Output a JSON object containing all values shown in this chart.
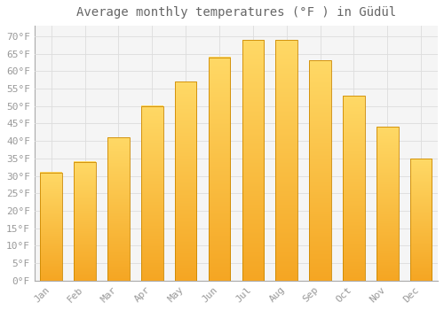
{
  "title": "Average monthly temperatures (°F ) in Güdül",
  "months": [
    "Jan",
    "Feb",
    "Mar",
    "Apr",
    "May",
    "Jun",
    "Jul",
    "Aug",
    "Sep",
    "Oct",
    "Nov",
    "Dec"
  ],
  "values": [
    31,
    34,
    41,
    50,
    57,
    64,
    69,
    69,
    63,
    53,
    44,
    35
  ],
  "bar_color_bottom": "#F5A623",
  "bar_color_top": "#FFD966",
  "bar_edge_color": "#B8860B",
  "ylim": [
    0,
    73
  ],
  "yticks": [
    0,
    5,
    10,
    15,
    20,
    25,
    30,
    35,
    40,
    45,
    50,
    55,
    60,
    65,
    70
  ],
  "bg_color": "#FFFFFF",
  "plot_bg_color": "#F5F5F5",
  "grid_color": "#DDDDDD",
  "label_color": "#999999",
  "title_fontsize": 10,
  "tick_fontsize": 8,
  "bar_width": 0.65
}
